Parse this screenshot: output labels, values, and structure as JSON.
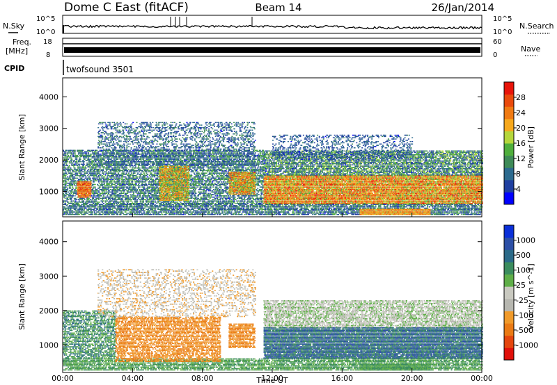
{
  "header": {
    "station": "Dome C East (fitACF)",
    "beam": "Beam 14",
    "date": "26/Jan/2014"
  },
  "top_panels": {
    "nsky_label": "N.Sky",
    "nsky_ticks": [
      "10^5",
      "10^0"
    ],
    "nsearch_label": "N.Search",
    "nsearch_ticks": [
      "10^5",
      "10^0"
    ],
    "freq_label": "Freq.",
    "freq_unit": "[MHz]",
    "freq_ticks": [
      "18",
      "8"
    ],
    "nave_label": "Nave",
    "nave_ticks": [
      "60",
      "0"
    ],
    "cpid_label": "CPID",
    "cpid_value": "twofsound 3501"
  },
  "colors": {
    "power": [
      "#0000ff",
      "#1f3fa0",
      "#2c6a8e",
      "#3e8a57",
      "#4fae3c",
      "#b5d63b",
      "#f6a81d",
      "#f07a12",
      "#ea4a0c",
      "#e8140a"
    ],
    "velocity": [
      "#0a2fd8",
      "#2c4fa6",
      "#2b6a88",
      "#3b8c5e",
      "#5fae48",
      "#c9c9c0",
      "#b7b7b0",
      "#f09a2a",
      "#ea7a14",
      "#e4460e",
      "#e0100a"
    ]
  },
  "chart_data": [
    {
      "type": "heatmap",
      "name": "power",
      "ylabel": "Slant Range [km]",
      "xlabel": "",
      "yticks": [
        "1000",
        "2000",
        "3000",
        "4000"
      ],
      "ylim": [
        200,
        4600
      ],
      "xlim": [
        0,
        24
      ],
      "xticks": [],
      "colorbar": {
        "label": "Power [dB]",
        "ticks": [
          "28",
          "24",
          "20",
          "16",
          "12",
          "8",
          "4"
        ],
        "range": [
          0,
          32
        ]
      },
      "bands": [
        {
          "t0": 0.0,
          "t1": 24.0,
          "r0": 250,
          "r1": 600,
          "min": 3,
          "max": 14,
          "density": 0.55
        },
        {
          "t0": 0.0,
          "t1": 11.5,
          "r0": 600,
          "r1": 2300,
          "min": 3,
          "max": 16,
          "density": 0.45
        },
        {
          "t0": 0.8,
          "t1": 1.6,
          "r0": 800,
          "r1": 1300,
          "min": 20,
          "max": 30,
          "density": 0.8
        },
        {
          "t0": 5.5,
          "t1": 7.2,
          "r0": 700,
          "r1": 1800,
          "min": 12,
          "max": 26,
          "density": 0.7
        },
        {
          "t0": 2.0,
          "t1": 11.0,
          "r0": 1800,
          "r1": 3200,
          "min": 3,
          "max": 12,
          "density": 0.25
        },
        {
          "t0": 9.5,
          "t1": 11.0,
          "r0": 900,
          "r1": 1600,
          "min": 14,
          "max": 28,
          "density": 0.7
        },
        {
          "t0": 11.5,
          "t1": 24.0,
          "r0": 600,
          "r1": 1500,
          "min": 14,
          "max": 30,
          "density": 0.85
        },
        {
          "t0": 11.5,
          "t1": 24.0,
          "r0": 1500,
          "r1": 2300,
          "min": 3,
          "max": 18,
          "density": 0.55
        },
        {
          "t0": 12.0,
          "t1": 20.0,
          "r0": 2000,
          "r1": 2800,
          "min": 3,
          "max": 10,
          "density": 0.2
        },
        {
          "t0": 17.0,
          "t1": 21.0,
          "r0": 250,
          "r1": 450,
          "min": 18,
          "max": 26,
          "density": 0.9
        }
      ]
    },
    {
      "type": "heatmap",
      "name": "velocity",
      "ylabel": "Slant Range [km]",
      "xlabel": "Time UT",
      "yticks": [
        "1000",
        "2000",
        "3000",
        "4000"
      ],
      "ylim": [
        200,
        4600
      ],
      "xlim": [
        0,
        24
      ],
      "xticks": [
        "00:00",
        "04:00",
        "08:00",
        "12:00",
        "16:00",
        "20:00",
        "00:00"
      ],
      "colorbar": {
        "label": "Velocity [m s^-1]",
        "ticks": [
          "1000",
          "500",
          "100",
          "25",
          "-25",
          "-100",
          "-500",
          "-1000"
        ]
      },
      "bands": [
        {
          "t0": 0.0,
          "t1": 24.0,
          "r0": 250,
          "r1": 600,
          "class": [
            3,
            4
          ],
          "density": 0.55
        },
        {
          "t0": 0.0,
          "t1": 3.0,
          "r0": 600,
          "r1": 2000,
          "class": [
            2,
            3,
            4
          ],
          "density": 0.45
        },
        {
          "t0": 3.0,
          "t1": 9.0,
          "r0": 500,
          "r1": 1800,
          "class": [
            7,
            8
          ],
          "density": 0.5
        },
        {
          "t0": 2.0,
          "t1": 11.0,
          "r0": 1800,
          "r1": 3200,
          "class": [
            5,
            6,
            7
          ],
          "density": 0.2
        },
        {
          "t0": 9.5,
          "t1": 11.0,
          "r0": 900,
          "r1": 1600,
          "class": [
            7,
            8
          ],
          "density": 0.6
        },
        {
          "t0": 11.5,
          "t1": 24.0,
          "r0": 600,
          "r1": 1500,
          "class": [
            2,
            3,
            1
          ],
          "density": 0.8
        },
        {
          "t0": 11.5,
          "t1": 24.0,
          "r0": 1500,
          "r1": 2300,
          "class": [
            5,
            6,
            4
          ],
          "density": 0.5
        },
        {
          "t0": 17.0,
          "t1": 21.0,
          "r0": 250,
          "r1": 450,
          "class": [
            4,
            3
          ],
          "density": 0.9
        }
      ]
    }
  ]
}
